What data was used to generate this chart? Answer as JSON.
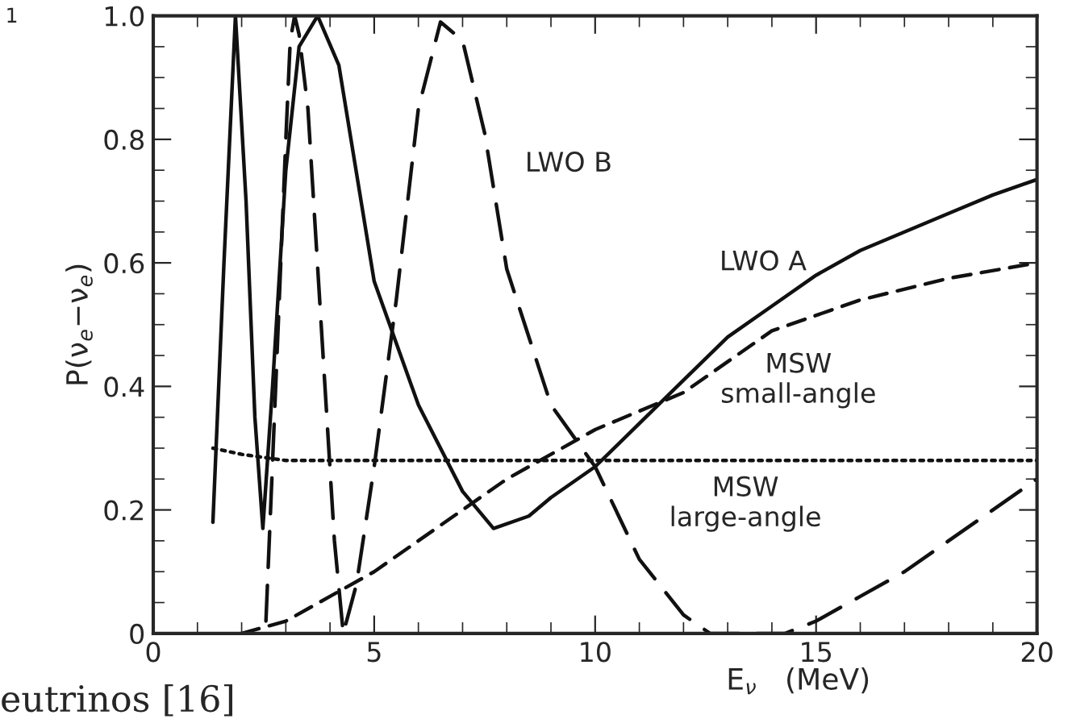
{
  "chart_data": {
    "type": "line",
    "xlabel": "E$_{ν}$   (MeV)",
    "ylabel": "P(ν$_{e}$−ν$_{e}$)",
    "xlim": [
      0,
      20
    ],
    "ylim": [
      0,
      1
    ],
    "xticks": [
      0,
      5,
      10,
      15,
      20
    ],
    "yticks": [
      0,
      0.2,
      0.4,
      0.6,
      0.8,
      {
        "value": 1,
        "label": "1.0"
      }
    ],
    "grid": false,
    "legend": false,
    "series": [
      {
        "name": "LWO A",
        "color": "#111111",
        "line_style": "solid",
        "x": [
          1.35,
          1.6,
          1.86,
          2.1,
          2.3,
          2.48,
          2.7,
          3.0,
          3.3,
          3.72,
          4.2,
          5.0,
          5.5,
          6.0,
          7.0,
          7.7,
          8.5,
          9.0,
          10.0,
          11.0,
          12.0,
          13.0,
          14.0,
          15.0,
          16.0,
          17.0,
          18.0,
          19.0,
          20.0
        ],
        "values": [
          0.18,
          0.6,
          1.0,
          0.7,
          0.35,
          0.17,
          0.4,
          0.75,
          0.95,
          1.0,
          0.92,
          0.57,
          0.47,
          0.37,
          0.23,
          0.17,
          0.19,
          0.22,
          0.27,
          0.34,
          0.41,
          0.48,
          0.53,
          0.58,
          0.62,
          0.65,
          0.68,
          0.71,
          0.735
        ]
      },
      {
        "name": "LWO B",
        "color": "#111111",
        "line_style": "dashed",
        "x": [
          2.55,
          2.8,
          3.0,
          3.1,
          3.2,
          3.3,
          3.5,
          3.8,
          4.1,
          4.3,
          4.6,
          5.0,
          5.5,
          6.0,
          6.5,
          7.0,
          7.5,
          8.0,
          9.0,
          10.0,
          11.0,
          12.0,
          12.6,
          13.5,
          14.3,
          15.0,
          16.0,
          17.0,
          18.0,
          19.0,
          20.0
        ],
        "values": [
          0.02,
          0.45,
          0.8,
          0.96,
          1.0,
          0.97,
          0.85,
          0.5,
          0.15,
          0.0,
          0.08,
          0.27,
          0.54,
          0.85,
          0.99,
          0.96,
          0.81,
          0.59,
          0.37,
          0.27,
          0.12,
          0.03,
          0.0,
          0.0,
          0.0,
          0.02,
          0.06,
          0.1,
          0.15,
          0.2,
          0.25
        ]
      },
      {
        "name": "MSW\nsmall-angle",
        "color": "#111111",
        "line_style": "dashed",
        "x": [
          2.0,
          3.0,
          4.0,
          5.0,
          6.0,
          7.0,
          8.0,
          9.0,
          10.0,
          12.0,
          14.0,
          16.0,
          18.0,
          20.0
        ],
        "values": [
          0.0,
          0.02,
          0.06,
          0.1,
          0.15,
          0.2,
          0.25,
          0.29,
          0.33,
          0.39,
          0.49,
          0.54,
          0.575,
          0.6
        ]
      },
      {
        "name": "MSW\nlarge-angle",
        "color": "#111111",
        "line_style": "dotted",
        "x": [
          1.35,
          2.0,
          2.5,
          3.0,
          4.0,
          6.0,
          10.0,
          15.0,
          20.0
        ],
        "values": [
          0.3,
          0.29,
          0.285,
          0.28,
          0.28,
          0.28,
          0.28,
          0.28,
          0.28
        ]
      }
    ],
    "annotations": [
      "1",
      "eutrinos [16]"
    ]
  }
}
